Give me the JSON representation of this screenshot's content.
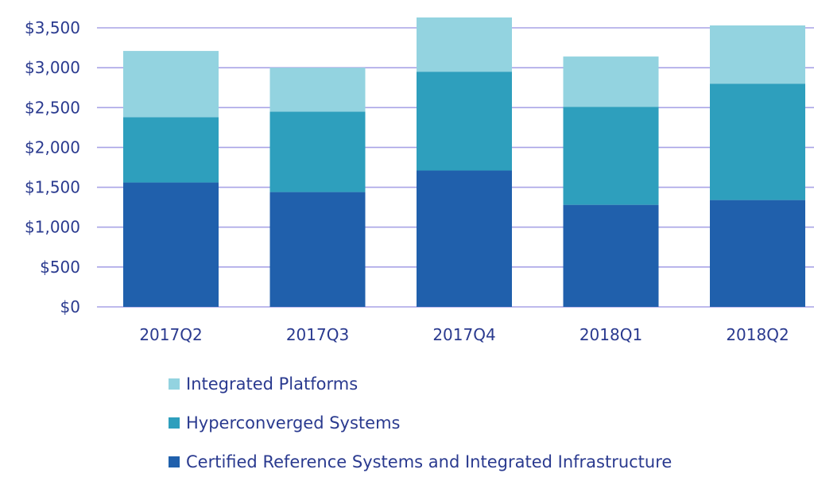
{
  "chart_data": {
    "type": "bar",
    "stacked": true,
    "categories": [
      "2017Q2",
      "2017Q3",
      "2017Q4",
      "2018Q1",
      "2018Q2"
    ],
    "series": [
      {
        "name": "Certified Reference Systems and Integrated Infrastructure",
        "color": "#2060ac",
        "values": [
          1560,
          1440,
          1710,
          1280,
          1340
        ]
      },
      {
        "name": "Hyperconverged Systems",
        "color": "#2e9fbd",
        "values": [
          820,
          1010,
          1240,
          1230,
          1460
        ]
      },
      {
        "name": "Integrated Platforms",
        "color": "#93d3e0",
        "values": [
          830,
          550,
          680,
          630,
          730
        ]
      }
    ],
    "y_ticks": [
      "$0",
      "$500",
      "$1,000",
      "$1,500",
      "$2,000",
      "$2,500",
      "$3,000",
      "$3,500"
    ],
    "ylim": [
      0,
      3500
    ],
    "grid": true,
    "grid_color": "#a9a4e6",
    "text_color": "#2a3a8f",
    "legend_position": "bottom"
  },
  "legend": [
    {
      "label": "Integrated Platforms",
      "color": "#93d3e0"
    },
    {
      "label": "Hyperconverged Systems",
      "color": "#2e9fbd"
    },
    {
      "label": "Certified Reference Systems and Integrated Infrastructure",
      "color": "#2060ac"
    }
  ]
}
